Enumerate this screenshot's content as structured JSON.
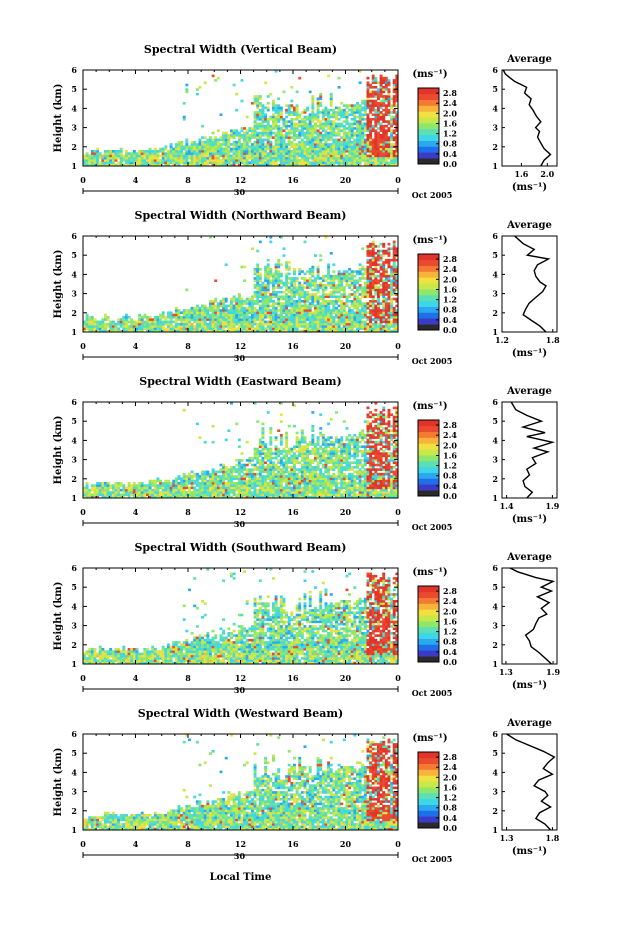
{
  "colors": {
    "colorbar": [
      "#2a2a2a",
      "#3b3bc8",
      "#1f6fe8",
      "#2aa8f0",
      "#3fd6e8",
      "#5ae0b4",
      "#8ee66a",
      "#c8e84a",
      "#f0e040",
      "#f8b43a",
      "#f47a32",
      "#ea4a30",
      "#e23428"
    ],
    "background": "#ffffff",
    "line": "#000000"
  },
  "xlabel": "Local Time",
  "chart_data": [
    {
      "type": "heatmap",
      "title": "Spectral Width (Vertical Beam)",
      "ylabel": "Height (km)",
      "xticks": [
        "0",
        "4",
        "8",
        "12",
        "16",
        "20",
        "0"
      ],
      "yticks": [
        "1",
        "2",
        "3",
        "4",
        "5",
        "6"
      ],
      "xlim": [
        0,
        24
      ],
      "ylim": [
        1,
        6
      ],
      "date_tick": "30",
      "date_label": "Oct 2005",
      "colorbar": {
        "unit": "(ms⁻¹)",
        "ticks": [
          "0.0",
          "0.4",
          "0.8",
          "1.2",
          "1.6",
          "2.0",
          "2.4",
          "2.8"
        ],
        "range": [
          0,
          3.0
        ]
      },
      "profile": {
        "type": "line",
        "title": "Average",
        "xlabel": "(ms⁻¹)",
        "xticks": [
          "1.6",
          "2.0"
        ],
        "xlim": [
          1.3,
          2.15
        ],
        "ylim": [
          1,
          6
        ],
        "yticks": [
          "1",
          "2",
          "3",
          "4",
          "5",
          "6"
        ],
        "x": [
          1.9,
          1.95,
          2.05,
          1.95,
          1.9,
          1.85,
          1.88,
          1.82,
          1.9,
          1.83,
          1.78,
          1.72,
          1.75,
          1.65,
          1.68,
          1.5,
          1.42,
          1.35,
          1.32
        ],
        "y": [
          1.0,
          1.3,
          1.6,
          1.9,
          2.2,
          2.5,
          2.8,
          3.0,
          3.3,
          3.6,
          3.9,
          4.2,
          4.5,
          4.8,
          5.1,
          5.4,
          5.6,
          5.8,
          6.0
        ]
      }
    },
    {
      "type": "heatmap",
      "title": "Spectral Width (Northward Beam)",
      "ylabel": "Height (km)",
      "xticks": [
        "0",
        "4",
        "8",
        "12",
        "16",
        "20",
        "0"
      ],
      "yticks": [
        "1",
        "2",
        "3",
        "4",
        "5",
        "6"
      ],
      "xlim": [
        0,
        24
      ],
      "ylim": [
        1,
        6
      ],
      "date_tick": "30",
      "date_label": "Oct 2005",
      "colorbar": {
        "unit": "(ms⁻¹)",
        "ticks": [
          "0.0",
          "0.4",
          "0.8",
          "1.2",
          "1.6",
          "2.0",
          "2.4",
          "2.8"
        ],
        "range": [
          0,
          3.0
        ]
      },
      "profile": {
        "type": "line",
        "title": "Average",
        "xlabel": "(ms⁻¹)",
        "xticks": [
          "1.2",
          "1.8"
        ],
        "xlim": [
          1.2,
          1.85
        ],
        "ylim": [
          1,
          6
        ],
        "yticks": [
          "1",
          "2",
          "3",
          "4",
          "5",
          "6"
        ],
        "x": [
          1.72,
          1.65,
          1.55,
          1.45,
          1.48,
          1.52,
          1.6,
          1.68,
          1.72,
          1.65,
          1.6,
          1.58,
          1.62,
          1.75,
          1.5,
          1.58,
          1.45,
          1.4,
          1.35
        ],
        "y": [
          1.0,
          1.3,
          1.6,
          1.9,
          2.2,
          2.5,
          2.8,
          3.1,
          3.4,
          3.6,
          3.9,
          4.2,
          4.5,
          4.8,
          5.0,
          5.3,
          5.6,
          5.8,
          6.0
        ]
      }
    },
    {
      "type": "heatmap",
      "title": "Spectral Width (Eastward Beam)",
      "ylabel": "Height (km)",
      "xticks": [
        "0",
        "4",
        "8",
        "12",
        "16",
        "20",
        "0"
      ],
      "yticks": [
        "1",
        "2",
        "3",
        "4",
        "5",
        "6"
      ],
      "xlim": [
        0,
        24
      ],
      "ylim": [
        1,
        6
      ],
      "date_tick": "30",
      "date_label": "Oct 2005",
      "colorbar": {
        "unit": "(ms⁻¹)",
        "ticks": [
          "0.0",
          "0.4",
          "0.8",
          "1.2",
          "1.6",
          "2.0",
          "2.4",
          "2.8"
        ],
        "range": [
          0,
          3.0
        ]
      },
      "profile": {
        "type": "line",
        "title": "Average",
        "xlabel": "(ms⁻¹)",
        "xticks": [
          "1.4",
          "1.9"
        ],
        "xlim": [
          1.35,
          1.95
        ],
        "ylim": [
          1,
          6
        ],
        "yticks": [
          "1",
          "2",
          "3",
          "4",
          "5",
          "6"
        ],
        "x": [
          1.62,
          1.68,
          1.6,
          1.58,
          1.65,
          1.62,
          1.72,
          1.68,
          1.85,
          1.7,
          1.9,
          1.62,
          1.82,
          1.58,
          1.78,
          1.62,
          1.5,
          1.45
        ],
        "y": [
          1.0,
          1.3,
          1.6,
          1.9,
          2.2,
          2.5,
          2.8,
          3.1,
          3.4,
          3.6,
          3.9,
          4.2,
          4.4,
          4.7,
          5.0,
          5.3,
          5.6,
          6.0
        ]
      }
    },
    {
      "type": "heatmap",
      "title": "Spectral Width (Southward Beam)",
      "ylabel": "Height (km)",
      "xticks": [
        "0",
        "4",
        "8",
        "12",
        "16",
        "20",
        "0"
      ],
      "yticks": [
        "1",
        "2",
        "3",
        "4",
        "5",
        "6"
      ],
      "xlim": [
        0,
        24
      ],
      "ylim": [
        1,
        6
      ],
      "date_tick": "30",
      "date_label": "Oct 2005",
      "colorbar": {
        "unit": "(ms⁻¹)",
        "ticks": [
          "0.0",
          "0.4",
          "0.8",
          "1.2",
          "1.6",
          "2.0",
          "2.4",
          "2.8"
        ],
        "range": [
          0,
          3.0
        ]
      },
      "profile": {
        "type": "line",
        "title": "Average",
        "xlabel": "(ms⁻¹)",
        "xticks": [
          "1.3",
          "1.9"
        ],
        "xlim": [
          1.25,
          1.95
        ],
        "ylim": [
          1,
          6
        ],
        "yticks": [
          "1",
          "2",
          "3",
          "4",
          "5",
          "6"
        ],
        "x": [
          1.88,
          1.8,
          1.72,
          1.62,
          1.6,
          1.55,
          1.65,
          1.68,
          1.72,
          1.82,
          1.75,
          1.85,
          1.7,
          1.88,
          1.75,
          1.9,
          1.68,
          1.45,
          1.35
        ],
        "y": [
          1.0,
          1.3,
          1.6,
          1.9,
          2.2,
          2.5,
          2.8,
          3.1,
          3.4,
          3.6,
          3.9,
          4.2,
          4.5,
          4.8,
          5.0,
          5.3,
          5.5,
          5.8,
          6.0
        ]
      }
    },
    {
      "type": "heatmap",
      "title": "Spectral Width (Westward Beam)",
      "ylabel": "Height (km)",
      "xticks": [
        "0",
        "4",
        "8",
        "12",
        "16",
        "20",
        "0"
      ],
      "yticks": [
        "1",
        "2",
        "3",
        "4",
        "5",
        "6"
      ],
      "xlim": [
        0,
        24
      ],
      "ylim": [
        1,
        6
      ],
      "date_tick": "30",
      "date_label": "Oct 2005",
      "colorbar": {
        "unit": "(ms⁻¹)",
        "ticks": [
          "0.0",
          "0.4",
          "0.8",
          "1.2",
          "1.6",
          "2.0",
          "2.4",
          "2.8"
        ],
        "range": [
          0,
          3.0
        ]
      },
      "profile": {
        "type": "line",
        "title": "Average",
        "xlabel": "(ms⁻¹)",
        "xticks": [
          "1.3",
          "1.8"
        ],
        "xlim": [
          1.25,
          1.85
        ],
        "ylim": [
          1,
          6
        ],
        "yticks": [
          "1",
          "2",
          "3",
          "4",
          "5",
          "6"
        ],
        "x": [
          1.78,
          1.72,
          1.62,
          1.66,
          1.78,
          1.68,
          1.75,
          1.72,
          1.6,
          1.65,
          1.8,
          1.7,
          1.75,
          1.82,
          1.7,
          1.55,
          1.4,
          1.3
        ],
        "y": [
          1.0,
          1.3,
          1.6,
          1.9,
          2.2,
          2.5,
          2.8,
          3.0,
          3.3,
          3.6,
          3.9,
          4.2,
          4.5,
          4.8,
          5.1,
          5.4,
          5.7,
          6.0
        ]
      }
    }
  ]
}
